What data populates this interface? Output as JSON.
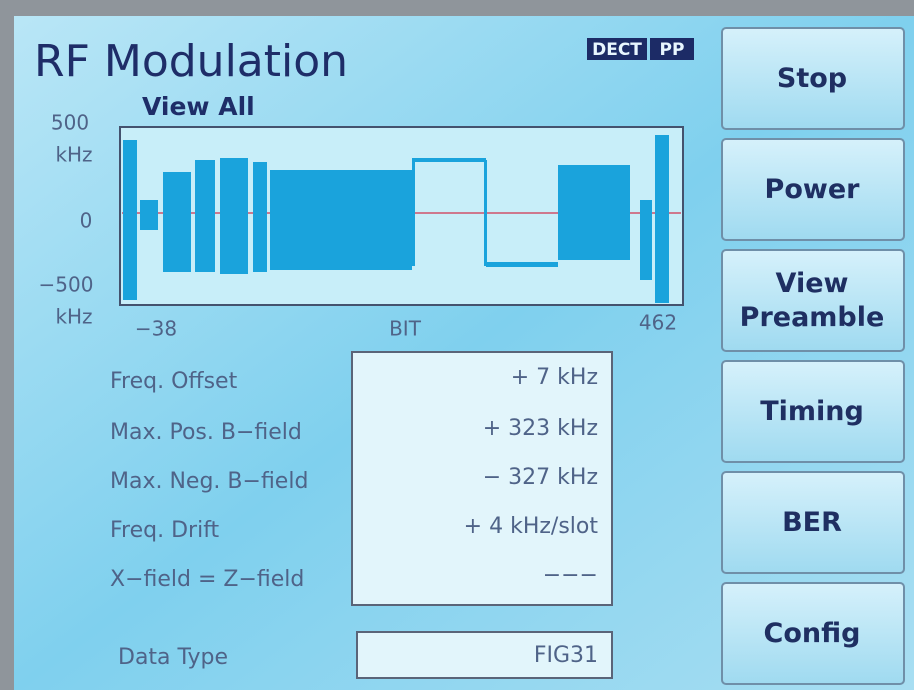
{
  "header": {
    "title": "RF Modulation",
    "badge": [
      "DECT",
      "PP"
    ]
  },
  "plot": {
    "subtitle": "View All",
    "y_labels": [
      "500",
      "kHz",
      "0",
      "−500",
      "kHz"
    ],
    "x_labels": [
      "−38",
      "BIT",
      "462"
    ]
  },
  "measurements": [
    {
      "label": "Freq. Offset",
      "value": "+ 7 kHz"
    },
    {
      "label": "Max. Pos. B−field",
      "value": "+ 323 kHz"
    },
    {
      "label": "Max. Neg. B−field",
      "value": "− 327 kHz"
    },
    {
      "label": "Freq. Drift",
      "value": "+ 4 kHz/slot"
    },
    {
      "label": "X−field = Z−field",
      "value": "−−−"
    }
  ],
  "data_type": {
    "label": "Data Type",
    "value": "FIG31"
  },
  "buttons": [
    [
      "Stop"
    ],
    [
      "Power"
    ],
    [
      "View",
      "Preamble"
    ],
    [
      "Timing"
    ],
    [
      "BER"
    ],
    [
      "Config"
    ]
  ]
}
